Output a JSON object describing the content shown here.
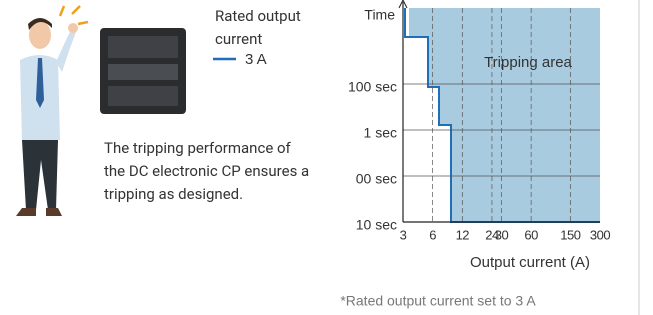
{
  "legend": {
    "title": "Rated output current",
    "label": "3 A"
  },
  "caption": "The tripping performance of the DC electronic CP ensures a tripping as designed.",
  "footnote": "*Rated output current set to 3 A",
  "chart_data": {
    "type": "step",
    "y_label": "Time",
    "x_label": "Output current (A)",
    "annotation": "Tripping area",
    "y_categories": [
      "10 sec",
      "00 sec",
      "1 sec",
      "100 sec"
    ],
    "xscale": "log",
    "xlim": [
      3,
      300
    ],
    "xticks": [
      3,
      6,
      12,
      24,
      30,
      60,
      150,
      300
    ],
    "grid": true,
    "color": "#1f6fb8",
    "area_color": "#a9cbe0"
  }
}
